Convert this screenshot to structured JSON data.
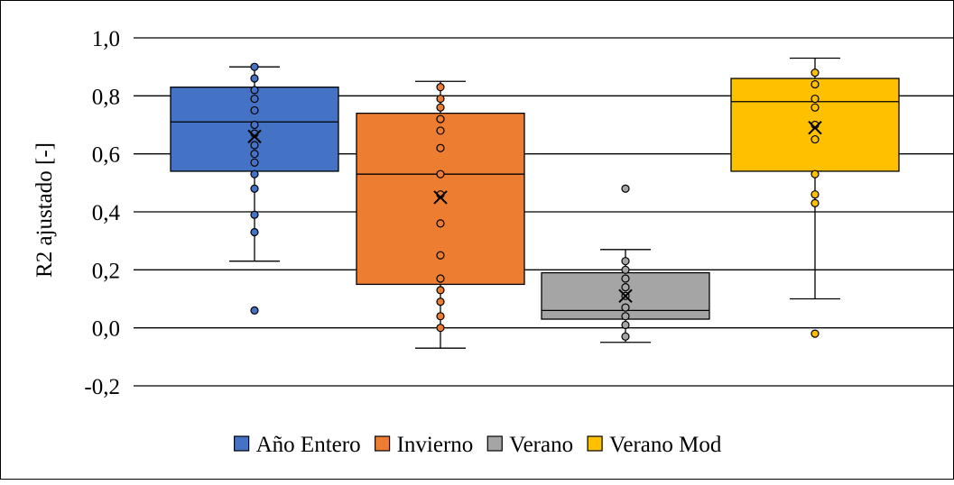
{
  "chart_data": {
    "type": "box",
    "title": "",
    "xlabel": "",
    "ylabel": "R2 ajustado [-]",
    "ylim": [
      -0.2,
      1.0
    ],
    "y_ticks": [
      1.0,
      0.8,
      0.6,
      0.4,
      0.2,
      0.0,
      -0.2
    ],
    "y_tick_labels": [
      "1,0",
      "0,8",
      "0,6",
      "0,4",
      "0,2",
      "0,0",
      "-0,2"
    ],
    "grid": true,
    "legend_position": "bottom",
    "series": [
      {
        "name": "Año Entero",
        "color": "#4472C4",
        "whisker_min": 0.23,
        "q1": 0.54,
        "median": 0.71,
        "q3": 0.83,
        "whisker_max": 0.9,
        "mean": 0.66,
        "points": [
          0.9,
          0.86,
          0.82,
          0.79,
          0.75,
          0.7,
          0.67,
          0.63,
          0.6,
          0.57,
          0.53,
          0.48,
          0.39,
          0.33
        ],
        "outliers": [
          0.06
        ]
      },
      {
        "name": "Invierno",
        "color": "#ED7D31",
        "whisker_min": -0.07,
        "q1": 0.15,
        "median": 0.53,
        "q3": 0.74,
        "whisker_max": 0.85,
        "mean": 0.45,
        "points": [
          0.83,
          0.79,
          0.76,
          0.72,
          0.68,
          0.62,
          0.53,
          0.46,
          0.36,
          0.25,
          0.17,
          0.13,
          0.09,
          0.04,
          0.0
        ],
        "outliers": []
      },
      {
        "name": "Verano",
        "color": "#A5A5A5",
        "whisker_min": -0.05,
        "q1": 0.03,
        "median": 0.06,
        "q3": 0.19,
        "whisker_max": 0.27,
        "mean": 0.11,
        "points": [
          0.23,
          0.2,
          0.17,
          0.14,
          0.11,
          0.07,
          0.04,
          0.01,
          -0.03
        ],
        "outliers": [
          0.48
        ]
      },
      {
        "name": "Verano Mod",
        "color": "#FFC000",
        "whisker_min": 0.1,
        "q1": 0.54,
        "median": 0.78,
        "q3": 0.86,
        "whisker_max": 0.93,
        "mean": 0.69,
        "points": [
          0.88,
          0.84,
          0.79,
          0.76,
          0.7,
          0.65,
          0.53,
          0.46,
          0.43
        ],
        "outliers": [
          -0.02
        ]
      }
    ]
  }
}
